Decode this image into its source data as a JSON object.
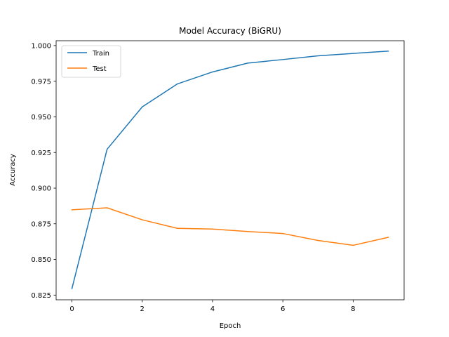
{
  "chart_data": {
    "type": "line",
    "title": "Model Accuracy (BiGRU)",
    "xlabel": "Epoch",
    "ylabel": "Accuracy",
    "x": [
      0,
      1,
      2,
      3,
      4,
      5,
      6,
      7,
      8,
      9
    ],
    "xlim": [
      -0.45,
      9.45
    ],
    "ylim": [
      0.8217,
      1.0034
    ],
    "xticks": [
      0,
      2,
      4,
      6,
      8
    ],
    "xtick_labels": [
      "0",
      "2",
      "4",
      "6",
      "8"
    ],
    "yticks": [
      0.825,
      0.85,
      0.875,
      0.9,
      0.925,
      0.95,
      0.975,
      1.0
    ],
    "ytick_labels": [
      "0.825",
      "0.850",
      "0.875",
      "0.900",
      "0.925",
      "0.950",
      "0.975",
      "1.000"
    ],
    "grid": false,
    "legend_position": "upper-left",
    "series": [
      {
        "name": "Train",
        "color": "#1f77b4",
        "values": [
          0.8296,
          0.9273,
          0.957,
          0.9731,
          0.9815,
          0.9877,
          0.9902,
          0.9928,
          0.9945,
          0.9961
        ]
      },
      {
        "name": "Test",
        "color": "#ff7f0e",
        "values": [
          0.8848,
          0.8862,
          0.8778,
          0.8718,
          0.8713,
          0.8696,
          0.8682,
          0.8633,
          0.8599,
          0.8655
        ]
      }
    ]
  }
}
